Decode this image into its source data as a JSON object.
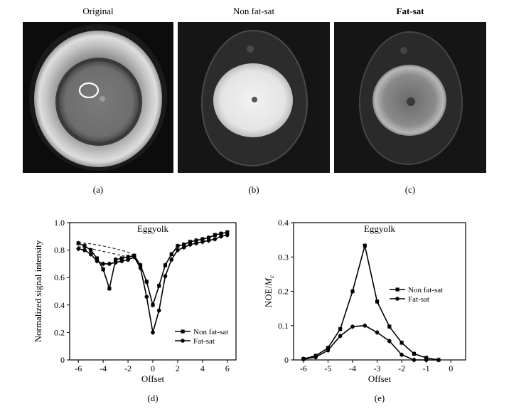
{
  "images": [
    {
      "title": "Original",
      "caption": "(a)"
    },
    {
      "title": "Non fat-sat",
      "caption": "(b)"
    },
    {
      "title": "Fat-sat",
      "caption": "(c)"
    }
  ],
  "chart_data": [
    {
      "type": "line",
      "title": "Eggyolk",
      "caption": "(d)",
      "xlabel": "Offset",
      "ylabel": "Normalized signal intensity",
      "xlim": [
        -6.7,
        6.7
      ],
      "ylim": [
        0,
        1.0
      ],
      "xticks": [
        -6,
        -4,
        -2,
        0,
        2,
        4,
        6
      ],
      "yticks": [
        0,
        0.2,
        0.4,
        0.6,
        0.8,
        1.0
      ],
      "ytick_labels": [
        "0",
        "0.2",
        "0.4",
        "0.6",
        "0.8",
        "1.0"
      ],
      "legend_position": "lower-right",
      "x": [
        -6,
        -5.5,
        -5,
        -4.5,
        -4,
        -3.5,
        -3,
        -2.5,
        -2,
        -1.5,
        -1,
        -0.5,
        0,
        0.5,
        1,
        1.5,
        2,
        2.5,
        3,
        3.5,
        4,
        4.5,
        5,
        5.5,
        6
      ],
      "series": [
        {
          "name": "Non fat-sat",
          "marker": "square",
          "values": [
            0.85,
            0.83,
            0.8,
            0.74,
            0.66,
            0.52,
            0.73,
            0.74,
            0.75,
            0.76,
            0.69,
            0.57,
            0.4,
            0.54,
            0.69,
            0.77,
            0.83,
            0.84,
            0.86,
            0.87,
            0.88,
            0.89,
            0.91,
            0.92,
            0.93
          ]
        },
        {
          "name": "Fat-sat",
          "marker": "circle",
          "values": [
            0.81,
            0.8,
            0.77,
            0.72,
            0.7,
            0.7,
            0.71,
            0.72,
            0.73,
            0.75,
            0.67,
            0.46,
            0.2,
            0.36,
            0.61,
            0.73,
            0.8,
            0.82,
            0.84,
            0.85,
            0.86,
            0.87,
            0.88,
            0.9,
            0.91
          ]
        }
      ],
      "dashed_curves": [
        {
          "x": [
            -6,
            -5,
            -4,
            -3,
            -2,
            -1.5
          ],
          "y": [
            0.855,
            0.845,
            0.83,
            0.81,
            0.785,
            0.76
          ]
        },
        {
          "x": [
            -6,
            -5,
            -4,
            -3,
            -2,
            -1.5
          ],
          "y": [
            0.825,
            0.81,
            0.79,
            0.77,
            0.75,
            0.74
          ]
        }
      ]
    },
    {
      "type": "line",
      "title": "Eggyolk",
      "caption": "(e)",
      "xlabel": "Offset",
      "ylabel_main": "NOE/",
      "ylabel_italic": "M",
      "ylabel_sub": "c",
      "xlim": [
        -6.4,
        0.6
      ],
      "ylim": [
        0,
        0.4
      ],
      "xticks": [
        -6,
        -5,
        -4,
        -3,
        -2,
        -1,
        0
      ],
      "yticks": [
        0,
        0.1,
        0.2,
        0.3,
        0.4
      ],
      "ytick_labels": [
        "0",
        "0.1",
        "0.2",
        "0.3",
        "0.4"
      ],
      "legend_position": "center-right",
      "x": [
        -6,
        -5.5,
        -5,
        -4.5,
        -4,
        -3.5,
        -3,
        -2.5,
        -2,
        -1.5,
        -1,
        -0.5
      ],
      "series": [
        {
          "name": "Non fat-sat",
          "marker": "square",
          "values": [
            0.003,
            0.012,
            0.035,
            0.09,
            0.2,
            0.333,
            0.17,
            0.097,
            0.05,
            0.018,
            0.006,
            0.0
          ]
        },
        {
          "name": "Fat-sat",
          "marker": "circle",
          "values": [
            0.002,
            0.008,
            0.028,
            0.07,
            0.097,
            0.1,
            0.08,
            0.055,
            0.015,
            0.0,
            0.0,
            0.0
          ]
        }
      ]
    }
  ]
}
